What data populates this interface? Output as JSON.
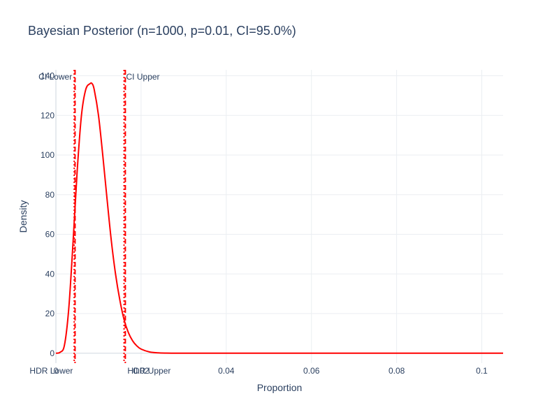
{
  "chart_data": {
    "type": "line",
    "title": "Bayesian Posterior (n=1000, p=0.01, CI=95.0%)",
    "xlabel": "Proportion",
    "ylabel": "Density",
    "xlim": [
      0,
      0.105
    ],
    "ylim": [
      -5,
      143
    ],
    "grid": true,
    "x_ticks": [
      0,
      0.02,
      0.04,
      0.06,
      0.08,
      0.1
    ],
    "x_tick_labels": [
      "0",
      "0.02",
      "0.04",
      "0.06",
      "0.08",
      "0.1"
    ],
    "y_ticks": [
      0,
      20,
      40,
      60,
      80,
      100,
      120,
      140
    ],
    "y_tick_labels": [
      "0",
      "20",
      "40",
      "60",
      "80",
      "100",
      "120",
      "140"
    ],
    "series": [
      {
        "color": "#ff0000",
        "x": [
          0,
          0.001,
          0.002,
          0.003,
          0.004,
          0.005,
          0.006,
          0.007,
          0.008,
          0.0085,
          0.009,
          0.01,
          0.011,
          0.012,
          0.013,
          0.014,
          0.015,
          0.016,
          0.017,
          0.018,
          0.019,
          0.02,
          0.022,
          0.024,
          0.026,
          0.028,
          0.03,
          0.035,
          0.04,
          0.05,
          0.06,
          0.08,
          0.1,
          0.105
        ],
        "y": [
          0,
          0.5,
          4,
          22,
          55,
          92,
          120,
          133,
          136,
          136,
          133,
          120,
          100,
          78,
          57,
          40,
          27,
          17,
          10.5,
          6.3,
          3.7,
          2.1,
          0.65,
          0.19,
          0.05,
          0.01,
          0,
          0,
          0,
          0,
          0,
          0,
          0,
          0
        ]
      }
    ],
    "vlines": [
      {
        "label": "CI Lower",
        "x": 0.0043,
        "style": "dot",
        "color": "#ff0000",
        "label_position": "top-left"
      },
      {
        "label": "CI Upper",
        "x": 0.016,
        "style": "dot",
        "color": "#ff0000",
        "label_position": "top-right"
      },
      {
        "label": "HDR Lower",
        "x": 0.0045,
        "style": "dash",
        "color": "#ff0000",
        "label_position": "bottom-left"
      },
      {
        "label": "HDR Upper",
        "x": 0.0163,
        "style": "dash",
        "color": "#ff0000",
        "label_position": "bottom-right"
      }
    ]
  }
}
